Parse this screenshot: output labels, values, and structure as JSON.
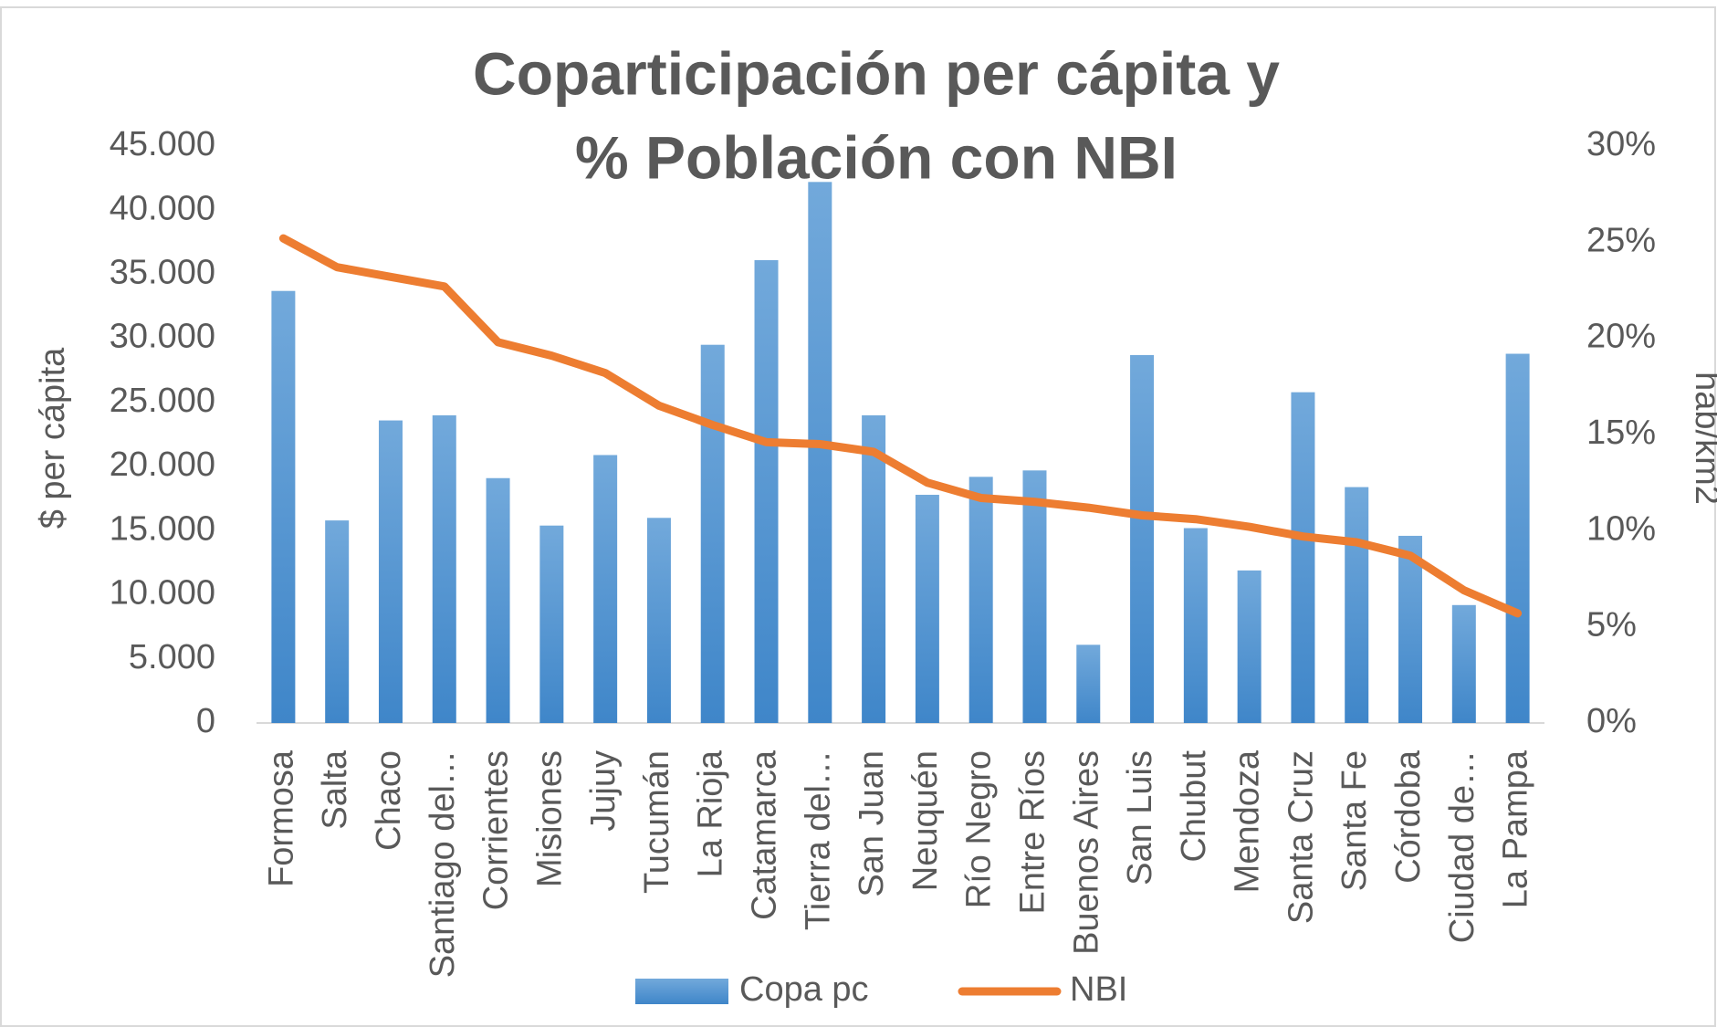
{
  "chart_data": {
    "type": "bar",
    "title": [
      "Coparticipación per cápita y",
      "% Población con NBI"
    ],
    "y_label": "$ per cápita",
    "y2_label": "hab/km2",
    "categories": [
      "Formosa",
      "Salta",
      "Chaco",
      "Santiago del…",
      "Corrientes",
      "Misiones",
      "Jujuy",
      "Tucumán",
      "La Rioja",
      "Catamarca",
      "Tierra del…",
      "San Juan",
      "Neuquén",
      "Río Negro",
      "Entre Ríos",
      "Buenos Aires",
      "San Luis",
      "Chubut",
      "Mendoza",
      "Santa Cruz",
      "Santa Fe",
      "Córdoba",
      "Ciudad de…",
      "La Pampa"
    ],
    "series": [
      {
        "name": "Copa pc",
        "type": "bar",
        "color": "#5b9bd5",
        "values": [
          33700,
          15800,
          23600,
          24000,
          19100,
          15400,
          20900,
          16000,
          29500,
          36100,
          42200,
          24000,
          17800,
          19200,
          19700,
          6100,
          28700,
          15200,
          11900,
          25800,
          18400,
          14600,
          9200,
          28800
        ]
      },
      {
        "name": "NBI",
        "type": "line",
        "axis": "y2",
        "color": "#ed7d31",
        "values": [
          25.2,
          23.7,
          23.2,
          22.7,
          19.8,
          19.1,
          18.2,
          16.5,
          15.5,
          14.6,
          14.5,
          14.1,
          12.5,
          11.7,
          11.5,
          11.2,
          10.8,
          10.6,
          10.2,
          9.7,
          9.4,
          8.7,
          6.9,
          5.7
        ]
      }
    ],
    "ylim": [
      0,
      45000
    ],
    "yticks": [
      0,
      {
        "value": 5000,
        "label": "5.000"
      },
      {
        "value": 10000,
        "label": "10.000"
      },
      {
        "value": 15000,
        "label": "15.000"
      },
      {
        "value": 20000,
        "label": "20.000"
      },
      {
        "value": 25000,
        "label": "25.000"
      },
      {
        "value": 30000,
        "label": "30.000"
      },
      {
        "value": 35000,
        "label": "35.000"
      },
      {
        "value": 40000,
        "label": "40.000"
      },
      {
        "value": 45000,
        "label": "45.000"
      }
    ],
    "y2lim": [
      0,
      30
    ],
    "y2ticks": [
      {
        "value": 0,
        "label": "0%"
      },
      {
        "value": 5,
        "label": "5%"
      },
      {
        "value": 10,
        "label": "10%"
      },
      {
        "value": 15,
        "label": "15%"
      },
      {
        "value": 20,
        "label": "20%"
      },
      {
        "value": 25,
        "label": "25%"
      },
      {
        "value": 30,
        "label": "30%"
      }
    ],
    "grid": false,
    "legend": "bottom"
  }
}
